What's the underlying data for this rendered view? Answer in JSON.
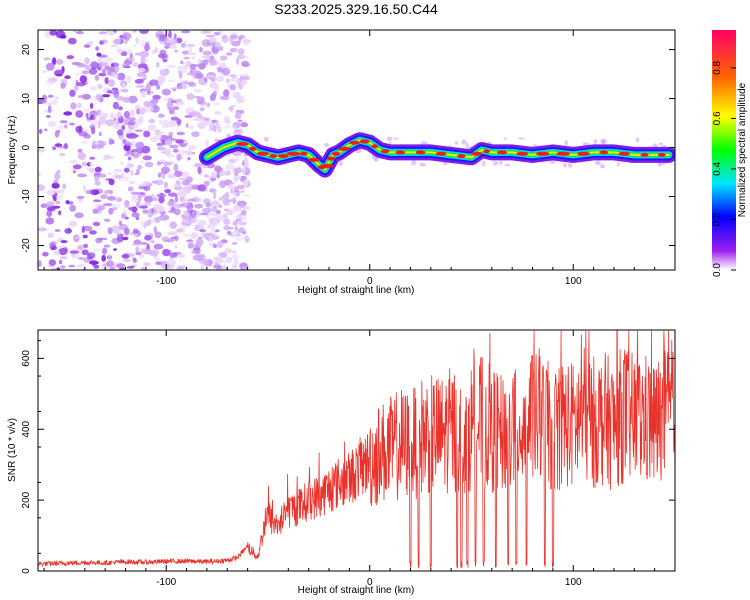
{
  "title": "S233.2025.329.16.50.C44",
  "chart_data": [
    {
      "type": "heatmap",
      "title": "S233.2025.329.16.50.C44",
      "xlabel": "Height of straight line (km)",
      "ylabel": "Frequency (Hz)",
      "xlim": [
        -163,
        150
      ],
      "ylim": [
        -25,
        24
      ],
      "xticks": [
        -100,
        0,
        100
      ],
      "yticks": [
        -20,
        -10,
        0,
        10,
        20
      ],
      "colorbar": {
        "label": "Normalized spectral amplitude",
        "range": [
          0.0,
          0.95
        ],
        "ticks": [
          0.0,
          0.2,
          0.4,
          0.6,
          0.8
        ]
      },
      "noise_region_x": [
        -163,
        -60
      ],
      "ridge": {
        "x": [
          -80,
          -72,
          -65,
          -60,
          -55,
          -50,
          -45,
          -40,
          -35,
          -30,
          -25,
          -22,
          -20,
          -18,
          -15,
          -10,
          -5,
          0,
          5,
          10,
          20,
          30,
          40,
          50,
          55,
          60,
          70,
          80,
          90,
          100,
          110,
          120,
          130,
          140,
          147
        ],
        "y": [
          -2,
          0,
          1,
          0.5,
          -1,
          -1.5,
          -2,
          -1.5,
          -1,
          -1.5,
          -3.5,
          -4.5,
          -3,
          -1.5,
          -1,
          0.5,
          1.5,
          1,
          -0.5,
          -1,
          -1,
          -1,
          -1.5,
          -2,
          -0.5,
          -1,
          -1,
          -1.5,
          -1,
          -1.5,
          -1,
          -1,
          -1.5,
          -1.5,
          -1.5
        ]
      }
    },
    {
      "type": "line",
      "xlabel": "Height of straight line (km)",
      "ylabel": "SNR (10 * v/v)",
      "xlim": [
        -163,
        150
      ],
      "ylim": [
        0,
        680
      ],
      "xticks": [
        -100,
        0,
        100
      ],
      "yticks": [
        0,
        200,
        400,
        600
      ],
      "series": [
        {
          "name": "SNR",
          "color": "#e8322b",
          "x": [
            -163,
            -150,
            -140,
            -130,
            -120,
            -110,
            -100,
            -90,
            -80,
            -70,
            -65,
            -60,
            -57,
            -55,
            -52,
            -50,
            -48,
            -45,
            -40,
            -35,
            -30,
            -25,
            -20,
            -15,
            -10,
            -5,
            0,
            5,
            10,
            15,
            20,
            25,
            30,
            35,
            40,
            45,
            50,
            55,
            60,
            65,
            70,
            75,
            80,
            85,
            90,
            95,
            100,
            105,
            110,
            115,
            120,
            125,
            130,
            135,
            140,
            145,
            150
          ],
          "values": [
            20,
            22,
            24,
            23,
            26,
            25,
            27,
            28,
            26,
            30,
            38,
            70,
            50,
            40,
            120,
            160,
            140,
            130,
            170,
            180,
            200,
            210,
            230,
            250,
            260,
            290,
            310,
            330,
            340,
            360,
            350,
            380,
            390,
            380,
            400,
            390,
            410,
            420,
            400,
            380,
            410,
            420,
            430,
            420,
            400,
            420,
            410,
            440,
            420,
            430,
            410,
            450,
            420,
            430,
            410,
            440,
            430
          ]
        }
      ]
    }
  ]
}
